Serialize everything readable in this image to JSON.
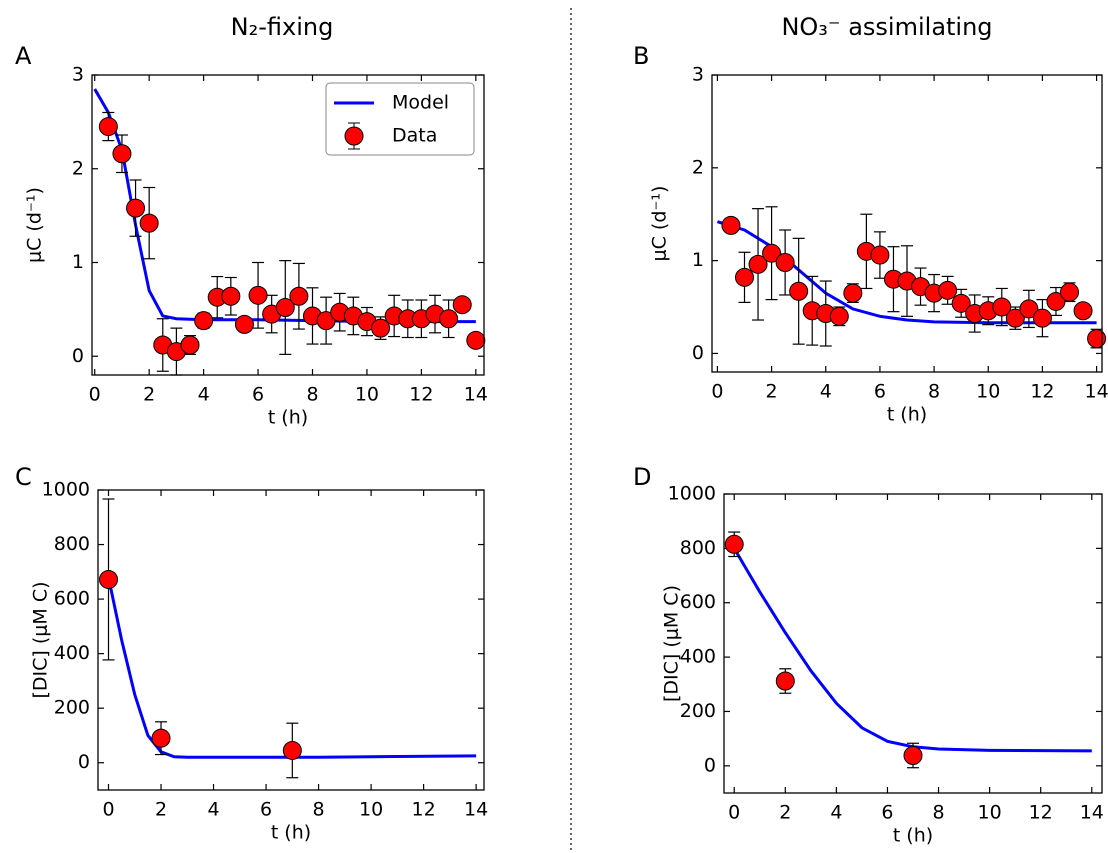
{
  "chart_data": [
    {
      "type": "line",
      "title": "N₂-fixing",
      "panel_label": "A",
      "xlabel": "t (h)",
      "ylabel": "μC (d⁻¹)",
      "xlim": [
        -0.1,
        14.3
      ],
      "ylim": [
        -0.2,
        3
      ],
      "xticks": [
        0,
        2,
        4,
        6,
        8,
        10,
        12,
        14
      ],
      "yticks": [
        0,
        1,
        2,
        3
      ],
      "legend": "upper right",
      "series": [
        {
          "name": "Model",
          "color": "#0000ff",
          "x": [
            0,
            0.5,
            1,
            1.5,
            2,
            2.5,
            3,
            4,
            6,
            8,
            10,
            14
          ],
          "values": [
            2.85,
            2.6,
            2.2,
            1.4,
            0.7,
            0.43,
            0.4,
            0.39,
            0.39,
            0.38,
            0.37,
            0.37
          ]
        },
        {
          "name": "Data",
          "color": "#ff0000",
          "x": [
            0.5,
            1,
            1.5,
            2,
            2.5,
            3,
            3.5,
            4,
            4.5,
            5,
            5.5,
            6,
            6.5,
            7,
            7.5,
            8,
            8.5,
            9,
            9.5,
            10,
            10.5,
            11,
            11.5,
            12,
            12.5,
            13,
            13.5,
            14
          ],
          "values": [
            2.45,
            2.16,
            1.58,
            1.42,
            0.12,
            0.05,
            0.12,
            0.38,
            0.63,
            0.64,
            0.34,
            0.65,
            0.45,
            0.52,
            0.64,
            0.43,
            0.38,
            0.47,
            0.43,
            0.37,
            0.3,
            0.43,
            0.4,
            0.4,
            0.45,
            0.4,
            0.55,
            0.17
          ],
          "errors": [
            0.15,
            0.2,
            0.3,
            0.38,
            0.28,
            0.25,
            0.1,
            0.08,
            0.22,
            0.2,
            0.05,
            0.35,
            0.2,
            0.5,
            0.35,
            0.3,
            0.25,
            0.2,
            0.2,
            0.15,
            0.12,
            0.22,
            0.2,
            0.2,
            0.2,
            0.2,
            0.05,
            0.03
          ]
        }
      ]
    },
    {
      "type": "line",
      "title": "NO₃⁻ assimilating",
      "panel_label": "B",
      "xlabel": "t (h)",
      "ylabel": "μC (d⁻¹)",
      "xlim": [
        -0.2,
        14.2
      ],
      "ylim": [
        -0.2,
        3
      ],
      "xticks": [
        0,
        2,
        4,
        6,
        8,
        10,
        12,
        14
      ],
      "yticks": [
        0,
        1,
        2,
        3
      ],
      "series": [
        {
          "color": "#0000ff",
          "x": [
            0,
            1,
            2,
            3,
            4,
            5,
            6,
            7,
            8,
            10,
            14
          ],
          "values": [
            1.42,
            1.33,
            1.15,
            0.9,
            0.65,
            0.48,
            0.4,
            0.36,
            0.34,
            0.33,
            0.33
          ]
        },
        {
          "color": "#ff0000",
          "x": [
            0.5,
            1,
            1.5,
            2,
            2.5,
            3,
            3.5,
            4,
            4.5,
            5,
            5.5,
            6,
            6.5,
            7,
            7.5,
            8,
            8.5,
            9,
            9.5,
            10,
            10.5,
            11,
            11.5,
            12,
            12.5,
            13,
            13.5,
            14
          ],
          "values": [
            1.38,
            0.82,
            0.96,
            1.08,
            0.98,
            0.67,
            0.46,
            0.43,
            0.4,
            0.65,
            1.1,
            1.06,
            0.8,
            0.78,
            0.72,
            0.65,
            0.68,
            0.54,
            0.43,
            0.46,
            0.5,
            0.38,
            0.48,
            0.38,
            0.56,
            0.66,
            0.46,
            0.16
          ],
          "errors": [
            0.02,
            0.27,
            0.6,
            0.5,
            0.35,
            0.57,
            0.37,
            0.35,
            0.1,
            0.1,
            0.4,
            0.25,
            0.35,
            0.38,
            0.2,
            0.2,
            0.15,
            0.15,
            0.2,
            0.15,
            0.2,
            0.12,
            0.2,
            0.2,
            0.15,
            0.1,
            0.05,
            0.1
          ]
        }
      ]
    },
    {
      "type": "line",
      "panel_label": "C",
      "xlabel": "t (h)",
      "ylabel": "[DIC] (μM C)",
      "xlim": [
        -0.4,
        14.3
      ],
      "ylim": [
        -100,
        1000
      ],
      "xticks": [
        0,
        2,
        4,
        6,
        8,
        10,
        12,
        14
      ],
      "yticks": [
        0,
        200,
        400,
        600,
        800,
        1000
      ],
      "series": [
        {
          "color": "#0000ff",
          "x": [
            0,
            0.5,
            1,
            1.5,
            2,
            2.5,
            3,
            8,
            10,
            14
          ],
          "values": [
            680,
            450,
            250,
            100,
            40,
            22,
            20,
            20,
            22,
            25
          ]
        },
        {
          "color": "#ff0000",
          "x": [
            0,
            2,
            7
          ],
          "values": [
            672,
            90,
            45
          ],
          "errors": [
            295,
            60,
            100
          ]
        }
      ]
    },
    {
      "type": "line",
      "panel_label": "D",
      "xlabel": "t (h)",
      "ylabel": "[DIC] (μM C)",
      "xlim": [
        -0.4,
        14.4
      ],
      "ylim": [
        -100,
        1000
      ],
      "xticks": [
        0,
        2,
        4,
        6,
        8,
        10,
        12,
        14
      ],
      "yticks": [
        0,
        200,
        400,
        600,
        800,
        1000
      ],
      "series": [
        {
          "color": "#0000ff",
          "x": [
            0,
            1,
            2,
            3,
            4,
            5,
            6,
            7,
            8,
            10,
            14
          ],
          "values": [
            800,
            640,
            490,
            350,
            230,
            140,
            90,
            70,
            62,
            57,
            55
          ]
        },
        {
          "color": "#ff0000",
          "x": [
            0,
            2,
            7
          ],
          "values": [
            815,
            312,
            38
          ],
          "errors": [
            45,
            45,
            45
          ]
        }
      ]
    }
  ]
}
